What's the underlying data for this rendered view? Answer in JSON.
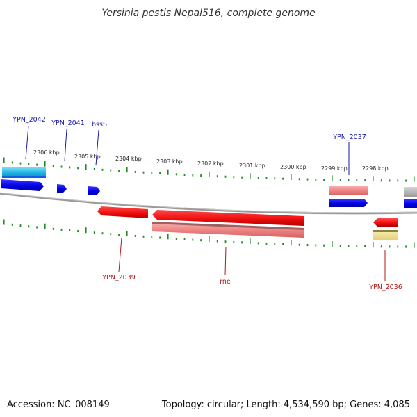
{
  "title": "Yersinia pestis Nepal516, complete genome",
  "footer": {
    "accession": "Accession: NC_008149",
    "summary": "Topology: circular; Length: 4,534,590 bp; Genes: 4,085"
  },
  "colors": {
    "backbone": "#8c8c8c",
    "tick": "#228b22",
    "forward_label": "#1a1aa6",
    "reverse_label": "#b01818",
    "forward_gene": "#0a0aee",
    "reverse_gene": "#ee1111",
    "light_blue": "#22bbe6",
    "light_red": "#ee8888",
    "gray": "#bbbbbb",
    "yellow": "#eee39a"
  },
  "scale_labels": [
    "2306 kbp",
    "2305 kbp",
    "2304 kbp",
    "2303 kbp",
    "2302 kbp",
    "2301 kbp",
    "2300 kbp",
    "2299 kbp",
    "2298 kbp"
  ],
  "forward_labels": [
    "YPN_2042",
    "YPN_2041",
    "bssS",
    "YPN_2037"
  ],
  "reverse_labels": [
    "YPN_2039",
    "rne",
    "YPN_2036"
  ]
}
